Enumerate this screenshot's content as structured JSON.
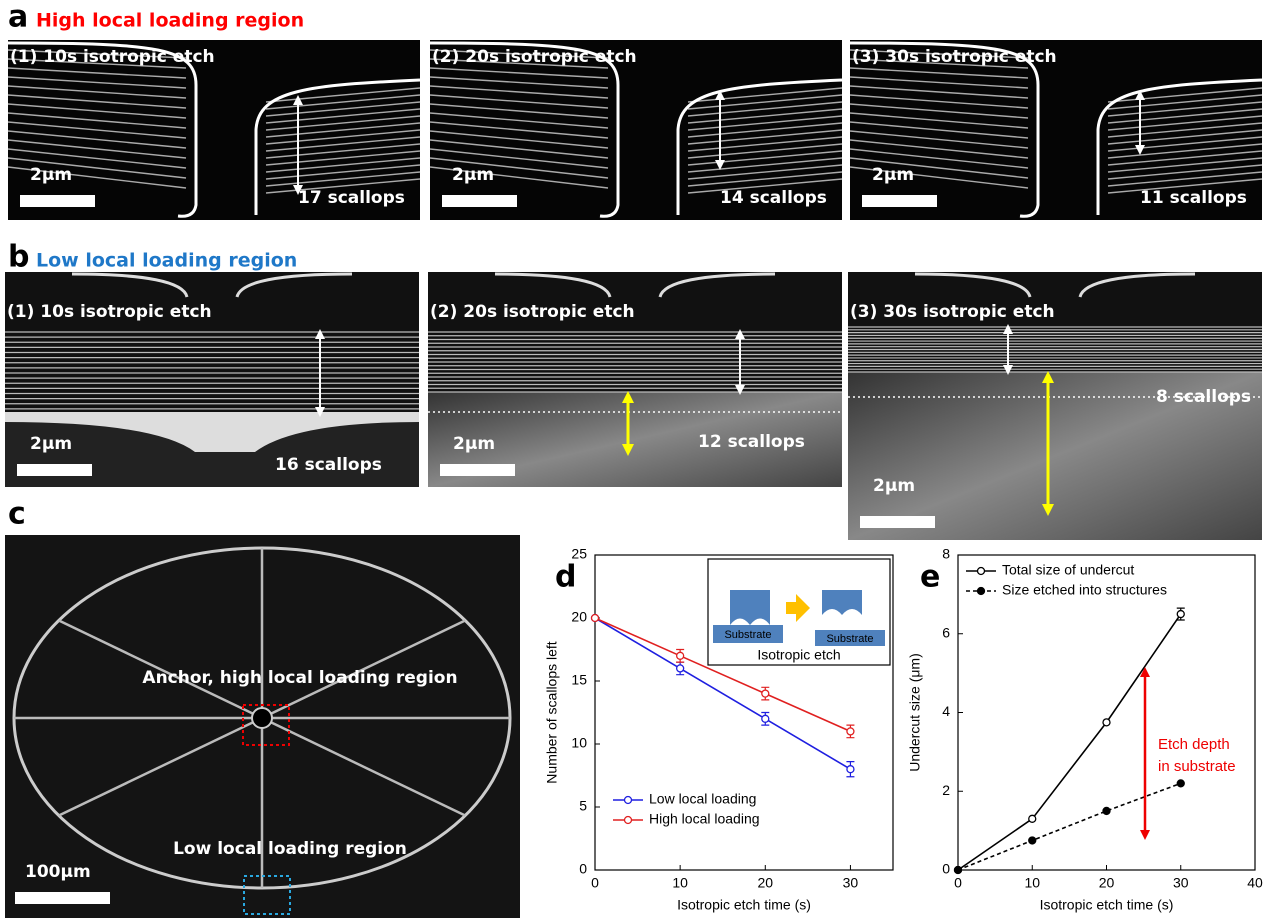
{
  "panel_a": {
    "label": "a",
    "title": "High local loading region",
    "images": [
      {
        "caption": "(1) 10s isotropic etch",
        "scale": "2μm",
        "scallops": "17 scallops"
      },
      {
        "caption": "(2) 20s isotropic etch",
        "scale": "2μm",
        "scallops": "14 scallops"
      },
      {
        "caption": "(3) 30s isotropic etch",
        "scale": "2μm",
        "scallops": "11 scallops"
      }
    ]
  },
  "panel_b": {
    "label": "b",
    "title": "Low local loading region",
    "images": [
      {
        "caption": "(1) 10s isotropic etch",
        "scale": "2μm",
        "scallops": "16 scallops"
      },
      {
        "caption": "(2) 20s isotropic etch",
        "scale": "2μm",
        "scallops": "12 scallops"
      },
      {
        "caption": "(3) 30s isotropic etch",
        "scale": "2μm",
        "scallops": "8 scallops"
      }
    ]
  },
  "panel_c": {
    "label": "c",
    "annotations": [
      "Anchor, high local loading region",
      "Low local loading region"
    ],
    "scale": "100μm"
  },
  "chart_data": [
    {
      "type": "line",
      "label": "d",
      "x_label": "Isotropic etch time (s)",
      "y_label": "Number of scallops left",
      "x": [
        0,
        10,
        20,
        30
      ],
      "xlim": [
        0,
        35
      ],
      "xticks": [
        0,
        10,
        20,
        30
      ],
      "ylim": [
        0,
        25
      ],
      "yticks": [
        0,
        5,
        10,
        15,
        20,
        25
      ],
      "legend": "bottom-left",
      "series": [
        {
          "name": "Low local loading",
          "color": "#1f1fe0",
          "values": [
            20,
            16,
            12,
            8
          ],
          "errors": [
            0,
            0.5,
            0.5,
            0.6
          ],
          "line_style": "solid",
          "marker_fill": "open"
        },
        {
          "name": "High local loading",
          "color": "#e02020",
          "values": [
            20,
            17,
            14,
            11
          ],
          "errors": [
            0,
            0.5,
            0.5,
            0.5
          ],
          "line_style": "solid",
          "marker_fill": "open"
        }
      ],
      "inset": {
        "labels": [
          "Substrate",
          "Substrate"
        ],
        "caption": "Isotropic etch"
      }
    },
    {
      "type": "line",
      "label": "e",
      "x_label": "Isotropic etch time (s)",
      "y_label": "Undercut size (μm)",
      "x": [
        0,
        10,
        20,
        30
      ],
      "xlim": [
        0,
        40
      ],
      "xticks": [
        0,
        10,
        20,
        30,
        40
      ],
      "ylim": [
        0,
        8
      ],
      "yticks": [
        0,
        2,
        4,
        6,
        8
      ],
      "legend": "top-left",
      "series": [
        {
          "name": "Total size of undercut",
          "color": "#000000",
          "values": [
            0,
            1.3,
            3.75,
            6.5
          ],
          "errors": [
            0,
            0,
            0,
            0.15
          ],
          "line_style": "solid",
          "marker_fill": "open"
        },
        {
          "name": "Size etched into structures",
          "color": "#000000",
          "values": [
            0,
            0.75,
            1.5,
            2.2
          ],
          "errors": [
            0,
            0,
            0,
            0
          ],
          "line_style": "dashed",
          "marker_fill": "filled"
        }
      ],
      "annotation": [
        "Etch depth",
        "in substrate"
      ]
    }
  ]
}
